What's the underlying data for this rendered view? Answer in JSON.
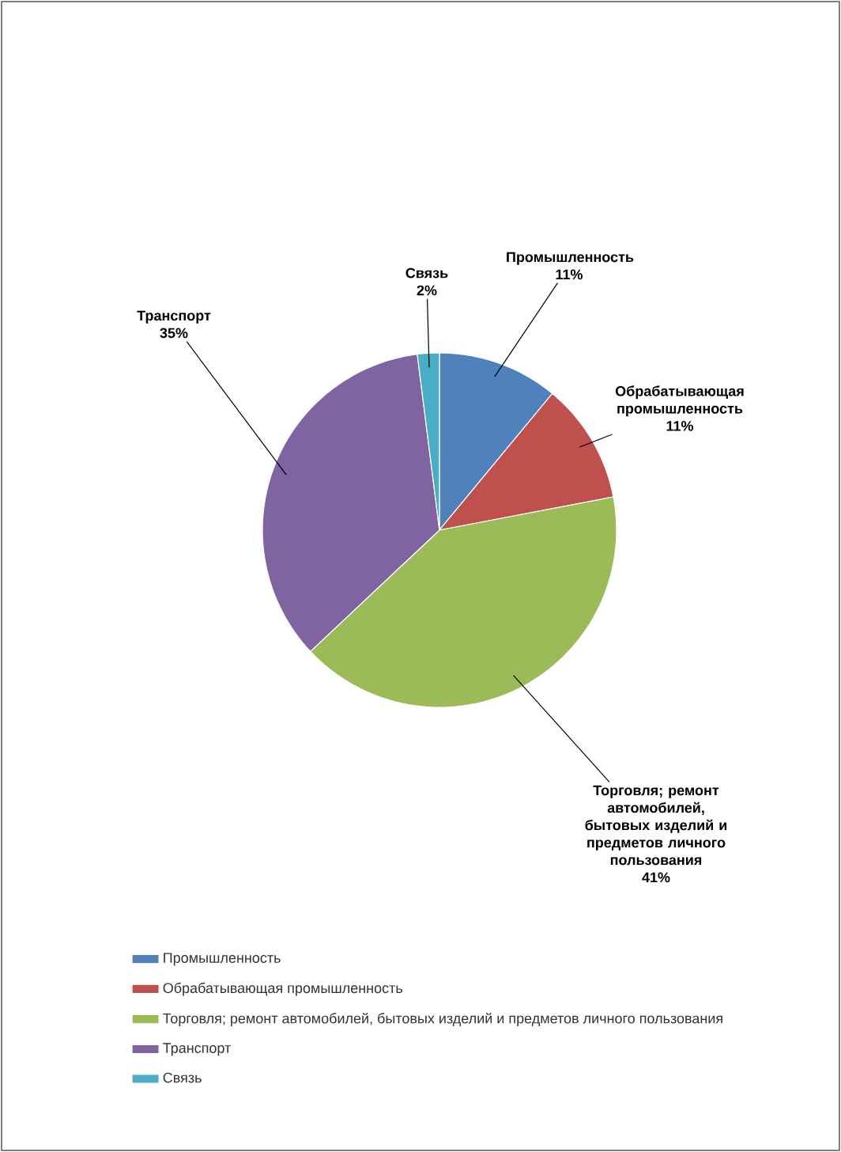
{
  "chart_data": {
    "type": "pie",
    "categories": [
      "Промышленность",
      "Обрабатывающая промышленность",
      "Торговля; ремонт автомобилей, бытовых изделий и предметов личного пользования",
      "Транспорт",
      "Связь"
    ],
    "values": [
      11,
      11,
      41,
      35,
      2
    ],
    "value_labels": [
      "11%",
      "11%",
      "41%",
      "35%",
      "2%"
    ],
    "colors": [
      "#4f81bd",
      "#c0504d",
      "#9bbb59",
      "#8064a2",
      "#4bacc6"
    ],
    "legend": "bottom"
  }
}
